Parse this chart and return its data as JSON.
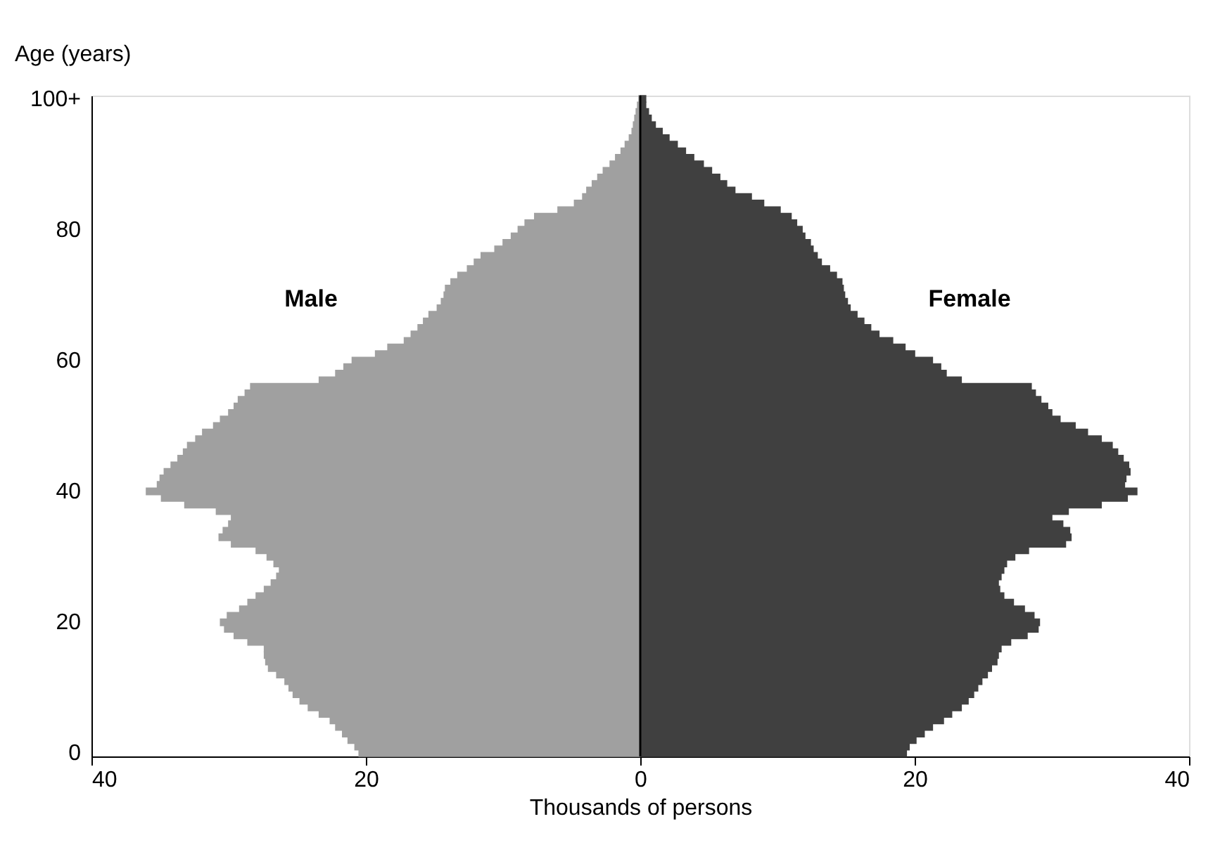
{
  "chart_data": {
    "type": "bar",
    "orientation": "horizontal",
    "stacked": true,
    "xlabel": "Thousands of persons",
    "ylabel": "Age (years)",
    "categories": [
      "100+",
      null,
      null,
      null,
      null,
      null,
      null,
      null,
      null,
      null,
      null,
      null,
      null,
      null,
      null,
      null,
      null,
      null,
      null,
      null,
      "80",
      null,
      null,
      null,
      null,
      null,
      null,
      null,
      null,
      null,
      null,
      null,
      null,
      null,
      null,
      null,
      null,
      null,
      null,
      null,
      "60",
      null,
      null,
      null,
      null,
      null,
      null,
      null,
      null,
      null,
      null,
      null,
      null,
      null,
      null,
      null,
      null,
      null,
      null,
      null,
      "40",
      null,
      null,
      null,
      null,
      null,
      null,
      null,
      null,
      null,
      null,
      null,
      null,
      null,
      null,
      null,
      null,
      null,
      null,
      null,
      "20",
      null,
      null,
      null,
      null,
      null,
      null,
      null,
      null,
      null,
      null,
      null,
      null,
      null,
      null,
      null,
      null,
      null,
      null,
      null,
      "0"
    ],
    "series": [
      {
        "name": "Male",
        "color": "#a0a0a0",
        "values": [
          -0.1,
          -0.2,
          -0.3,
          -0.4,
          -0.5,
          -0.6,
          -0.8,
          -1.1,
          -1.4,
          -1.8,
          -2.2,
          -2.7,
          -3.1,
          -3.5,
          -3.9,
          -4.2,
          -4.8,
          -6.0,
          -7.7,
          -8.4,
          -8.9,
          -9.4,
          -10.0,
          -10.6,
          -11.6,
          -12.1,
          -12.6,
          -13.3,
          -13.8,
          -14.2,
          -14.3,
          -14.5,
          -14.8,
          -15.4,
          -15.8,
          -16.2,
          -16.7,
          -17.2,
          -18.4,
          -19.3,
          -21.0,
          -21.6,
          -22.2,
          -23.4,
          -28.4,
          -28.8,
          -29.3,
          -29.6,
          -30.0,
          -30.6,
          -31.1,
          -31.9,
          -32.4,
          -33.0,
          -33.3,
          -33.7,
          -34.2,
          -34.7,
          -35.0,
          -35.2,
          -36.0,
          -34.9,
          -33.2,
          -30.9,
          -29.8,
          -30.0,
          -30.4,
          -30.7,
          -29.8,
          -28.0,
          -27.2,
          -26.7,
          -26.3,
          -26.5,
          -26.9,
          -27.4,
          -28.0,
          -28.6,
          -29.2,
          -30.1,
          -30.6,
          -30.3,
          -29.6,
          -28.6,
          -27.4,
          -27.4,
          -27.3,
          -27.1,
          -26.5,
          -25.9,
          -25.6,
          -25.3,
          -24.8,
          -24.2,
          -23.4,
          -22.6,
          -22.2,
          -21.7,
          -21.3,
          -20.8,
          -20.5
        ]
      },
      {
        "name": "Female",
        "color": "#404040",
        "values": [
          0.4,
          0.4,
          0.6,
          0.8,
          1.1,
          1.6,
          2.1,
          2.7,
          3.3,
          3.9,
          4.6,
          5.2,
          5.8,
          6.3,
          6.9,
          8.1,
          9.0,
          10.2,
          11.0,
          11.4,
          11.8,
          12.0,
          12.4,
          12.6,
          12.9,
          13.2,
          13.8,
          14.3,
          14.7,
          14.8,
          14.9,
          15.1,
          15.3,
          15.8,
          16.3,
          16.8,
          17.4,
          18.4,
          19.3,
          20.0,
          21.3,
          21.9,
          22.3,
          23.4,
          28.5,
          28.8,
          29.2,
          29.7,
          30.0,
          30.6,
          31.7,
          32.6,
          33.6,
          34.4,
          34.8,
          35.2,
          35.6,
          35.7,
          35.4,
          35.3,
          36.2,
          35.5,
          33.6,
          31.2,
          30.0,
          30.8,
          31.3,
          31.4,
          31.0,
          28.3,
          27.3,
          26.7,
          26.5,
          26.3,
          26.1,
          26.2,
          26.5,
          27.2,
          28.0,
          28.7,
          29.1,
          29.0,
          28.2,
          27.0,
          26.3,
          26.1,
          26.0,
          25.6,
          25.3,
          24.9,
          24.6,
          24.3,
          23.9,
          23.4,
          22.7,
          22.1,
          21.3,
          20.7,
          20.1,
          19.6,
          19.4
        ]
      }
    ],
    "xlim": [
      -40,
      40
    ],
    "xticks": [
      {
        "value": -40,
        "label": "40"
      },
      {
        "value": -20,
        "label": "20"
      },
      0,
      {
        "value": 20,
        "label": "20"
      },
      {
        "value": 40,
        "label": "40"
      }
    ],
    "ref_lines": [
      {
        "axis": "x",
        "value": 0,
        "label": null,
        "color": "#000000"
      }
    ],
    "grid": false,
    "legend": false
  }
}
